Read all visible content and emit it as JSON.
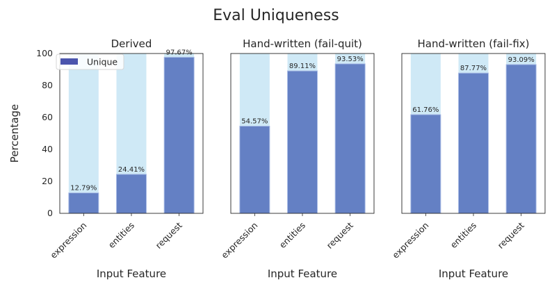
{
  "chart_data": {
    "type": "bar",
    "title": "Eval Uniqueness",
    "ylabel": "Percentage",
    "ylim": [
      0,
      100
    ],
    "yticks": [
      0,
      20,
      40,
      60,
      80,
      100
    ],
    "grid": false,
    "colors": {
      "background_bar": "#cfe9f6",
      "unique_bar": "#6480c4",
      "legend_swatch": "#4b55ad"
    },
    "legend": {
      "entries": [
        "Unique"
      ],
      "placement": "upper-left (first panel)"
    },
    "panels": [
      {
        "title": "Derived",
        "xlabel": "Input Feature",
        "categories": [
          "expression",
          "entities",
          "request"
        ],
        "background_values": [
          100,
          100,
          100
        ],
        "values": [
          12.79,
          24.41,
          97.67
        ],
        "value_labels": [
          "12.79%",
          "24.41%",
          "97.67%"
        ]
      },
      {
        "title": "Hand-written (fail-quit)",
        "xlabel": "Input Feature",
        "categories": [
          "expression",
          "entities",
          "request"
        ],
        "background_values": [
          100,
          100,
          100
        ],
        "values": [
          54.57,
          89.11,
          93.53
        ],
        "value_labels": [
          "54.57%",
          "89.11%",
          "93.53%"
        ]
      },
      {
        "title": "Hand-written (fail-fix)",
        "xlabel": "Input Feature",
        "categories": [
          "expression",
          "entities",
          "request"
        ],
        "background_values": [
          100,
          100,
          100
        ],
        "values": [
          61.76,
          87.77,
          93.09
        ],
        "value_labels": [
          "61.76%",
          "87.77%",
          "93.09%"
        ]
      }
    ]
  }
}
